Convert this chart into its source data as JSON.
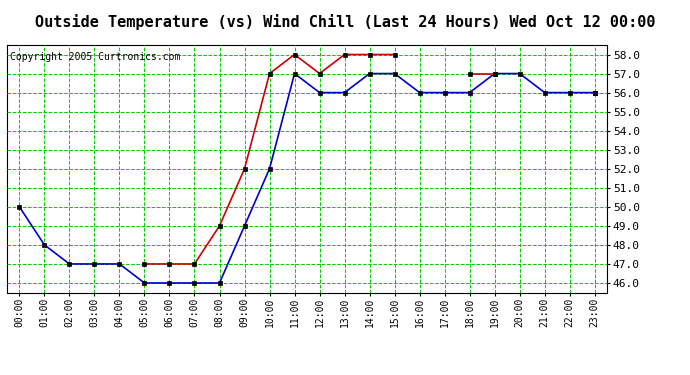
{
  "title": "Outside Temperature (vs) Wind Chill (Last 24 Hours) Wed Oct 12 00:00",
  "copyright": "Copyright 2005 Curtronics.com",
  "hours": [
    0,
    1,
    2,
    3,
    4,
    5,
    6,
    7,
    8,
    9,
    10,
    11,
    12,
    13,
    14,
    15,
    16,
    17,
    18,
    19,
    20,
    21,
    22,
    23
  ],
  "blue_data": [
    50.0,
    48.0,
    47.0,
    47.0,
    47.0,
    46.0,
    46.0,
    46.0,
    46.0,
    49.0,
    52.0,
    57.0,
    56.0,
    56.0,
    57.0,
    57.0,
    56.0,
    56.0,
    56.0,
    57.0,
    57.0,
    56.0,
    56.0,
    56.0
  ],
  "red_data": [
    null,
    null,
    null,
    null,
    null,
    47.0,
    47.0,
    47.0,
    49.0,
    52.0,
    57.0,
    58.0,
    57.0,
    58.0,
    58.0,
    58.0,
    null,
    null,
    57.0,
    57.0,
    null,
    null,
    null,
    56.0
  ],
  "ylim": [
    45.5,
    58.5
  ],
  "yticks": [
    46.0,
    47.0,
    48.0,
    49.0,
    50.0,
    51.0,
    52.0,
    53.0,
    54.0,
    55.0,
    56.0,
    57.0,
    58.0
  ],
  "xlim": [
    -0.5,
    23.5
  ],
  "blue_color": "#0000cc",
  "red_color": "#cc0000",
  "grid_color": "#00cc00",
  "bg_color": "#ffffff",
  "title_fontsize": 11,
  "copyright_fontsize": 7
}
